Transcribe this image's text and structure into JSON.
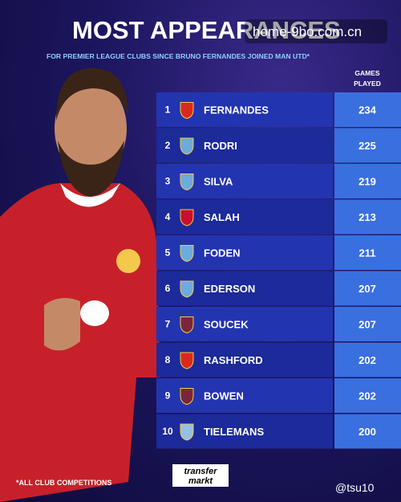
{
  "header": {
    "title": "MOST APPEARANCES",
    "subtitle": "FOR PREMIER LEAGUE CLUBS SINCE BRUNO FERNANDES JOINED MAN UTD*",
    "column": [
      "GAMES",
      "PLAYED"
    ]
  },
  "table": {
    "rows": [
      [
        1,
        "FERNANDES",
        234
      ],
      [
        2,
        "RODRI",
        225
      ],
      [
        3,
        "SILVA",
        219
      ],
      [
        4,
        "SALAH",
        213
      ],
      [
        5,
        "FODEN",
        211
      ],
      [
        6,
        "EDERSON",
        207
      ],
      [
        7,
        "SOUCEK",
        207
      ],
      [
        8,
        "RASHFORD",
        202
      ],
      [
        9,
        "BOWEN",
        202
      ],
      [
        10,
        "TIELEMANS",
        200
      ]
    ]
  },
  "footer": {
    "note": "*ALL CLUB COMPETITIONS",
    "logo": [
      "transfer",
      "markt"
    ]
  },
  "watermarks": [
    "home-9bo.com.cn",
    "@tsu10"
  ]
}
